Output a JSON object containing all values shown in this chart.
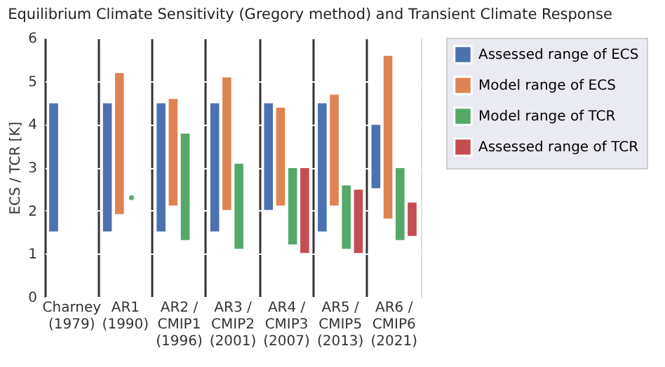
{
  "chart_data": {
    "type": "bar",
    "title": "Equilibrium Climate Sensitivity (Gregory method) and Transient Climate Response",
    "ylabel": "ECS / TCR [K]",
    "categories": [
      "Charney\n(1979)",
      "AR1\n(1990)",
      "AR2 /\nCMIP1\n(1996)",
      "AR3 /\nCMIP2\n(2001)",
      "AR4 /\nCMIP3\n(2007)",
      "AR5 /\nCMIP5\n(2013)",
      "AR6 /\nCMIP6\n(2021)"
    ],
    "series": [
      {
        "name": "Assessed range of ECS",
        "color": "#4c72b0",
        "base": [
          1.5,
          1.5,
          1.5,
          1.5,
          2.0,
          1.5,
          2.5
        ],
        "values": [
          3.0,
          3.0,
          3.0,
          3.0,
          2.5,
          3.0,
          1.5
        ]
      },
      {
        "name": "Model range of ECS",
        "color": "#dd8452",
        "base": [
          null,
          1.9,
          2.1,
          2.0,
          2.1,
          2.1,
          1.8
        ],
        "values": [
          null,
          3.3,
          2.5,
          3.1,
          2.3,
          2.6,
          3.8
        ]
      },
      {
        "name": "Model range of TCR",
        "color": "#55a868",
        "base": [
          null,
          null,
          1.3,
          1.1,
          1.2,
          1.1,
          1.3
        ],
        "values": [
          null,
          null,
          2.5,
          2.0,
          1.8,
          1.5,
          1.7
        ]
      },
      {
        "name": "Assessed range of TCR",
        "color": "#c44e52",
        "base": [
          null,
          null,
          null,
          null,
          1.0,
          1.0,
          1.4
        ],
        "values": [
          null,
          null,
          null,
          null,
          2.0,
          1.5,
          0.8
        ]
      },
      {
        "type": "scatter",
        "color": "#55a868",
        "marker": "circle",
        "values": [
          null,
          2.3,
          null,
          null,
          null,
          null,
          null
        ]
      }
    ],
    "ylim": [
      0,
      6
    ],
    "yticks": [
      0,
      1,
      2,
      3,
      4,
      5,
      6
    ],
    "grid": true,
    "legend": "right"
  }
}
